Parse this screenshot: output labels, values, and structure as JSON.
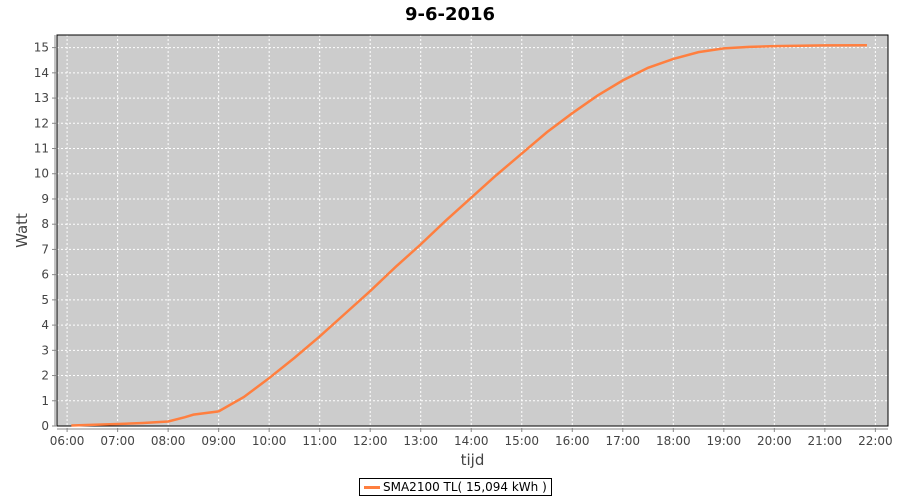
{
  "chart_data": {
    "type": "line",
    "title": "9-6-2016",
    "xlabel": "tijd",
    "ylabel": "Watt",
    "xlim": [
      "05:48",
      "22:15"
    ],
    "ylim": [
      0,
      15.5
    ],
    "x_ticks": [
      "06:00",
      "07:00",
      "08:00",
      "09:00",
      "10:00",
      "11:00",
      "12:00",
      "13:00",
      "14:00",
      "15:00",
      "16:00",
      "17:00",
      "18:00",
      "19:00",
      "20:00",
      "21:00",
      "22:00"
    ],
    "y_ticks": [
      "0",
      "1",
      "2",
      "3",
      "4",
      "5",
      "6",
      "7",
      "8",
      "9",
      "10",
      "11",
      "12",
      "13",
      "14",
      "15"
    ],
    "grid": true,
    "legend_position": "bottom",
    "plot_background": "#cccccc",
    "series": [
      {
        "name": "SMA2100 TL( 15,094 kWh )",
        "color": "#ff7f3f",
        "x": [
          "06:05",
          "07:00",
          "07:30",
          "08:00",
          "08:20",
          "08:30",
          "09:00",
          "09:30",
          "10:00",
          "10:30",
          "11:00",
          "11:30",
          "12:00",
          "12:30",
          "13:00",
          "13:30",
          "14:00",
          "14:30",
          "15:00",
          "15:30",
          "16:00",
          "16:30",
          "17:00",
          "17:30",
          "18:00",
          "18:30",
          "19:00",
          "19:30",
          "20:00",
          "21:00",
          "21:50"
        ],
        "y": [
          0.02,
          0.08,
          0.12,
          0.18,
          0.35,
          0.45,
          0.58,
          1.15,
          1.9,
          2.7,
          3.55,
          4.45,
          5.35,
          6.3,
          7.2,
          8.15,
          9.05,
          9.95,
          10.8,
          11.65,
          12.4,
          13.1,
          13.7,
          14.2,
          14.55,
          14.82,
          14.97,
          15.03,
          15.06,
          15.09,
          15.094
        ]
      }
    ]
  }
}
